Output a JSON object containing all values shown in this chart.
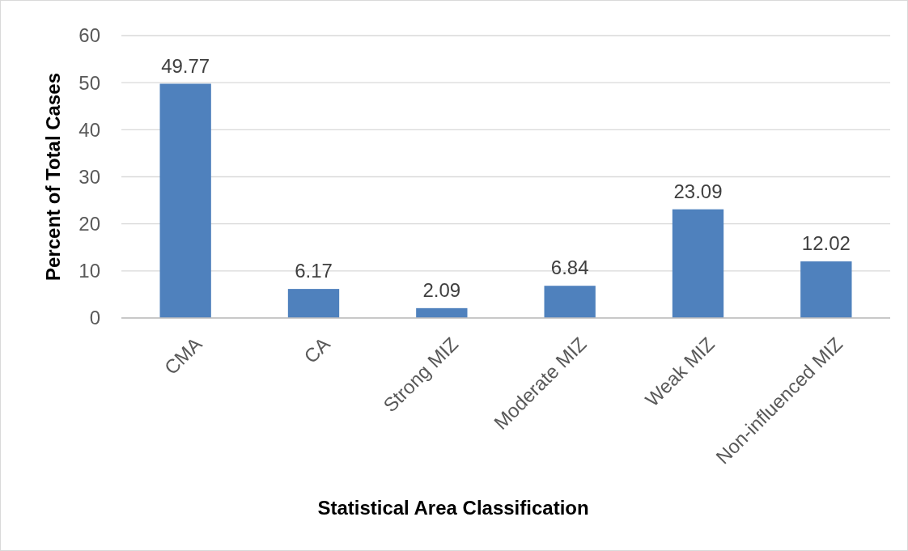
{
  "chart_data": {
    "type": "bar",
    "xlabel": "Statistical Area Classification",
    "ylabel": "Percent of Total Cases",
    "categories": [
      "CMA",
      "CA",
      "Strong MIZ",
      "Moderate MIZ",
      "Weak MIZ",
      "Non-influenced MIZ"
    ],
    "values": [
      49.77,
      6.17,
      2.09,
      6.84,
      23.09,
      12.02
    ],
    "color": "#4f81bd",
    "ylim": [
      0,
      60
    ],
    "yticks": [
      0,
      10,
      20,
      30,
      40,
      50,
      60
    ],
    "grid": "y",
    "data_labels": true
  }
}
